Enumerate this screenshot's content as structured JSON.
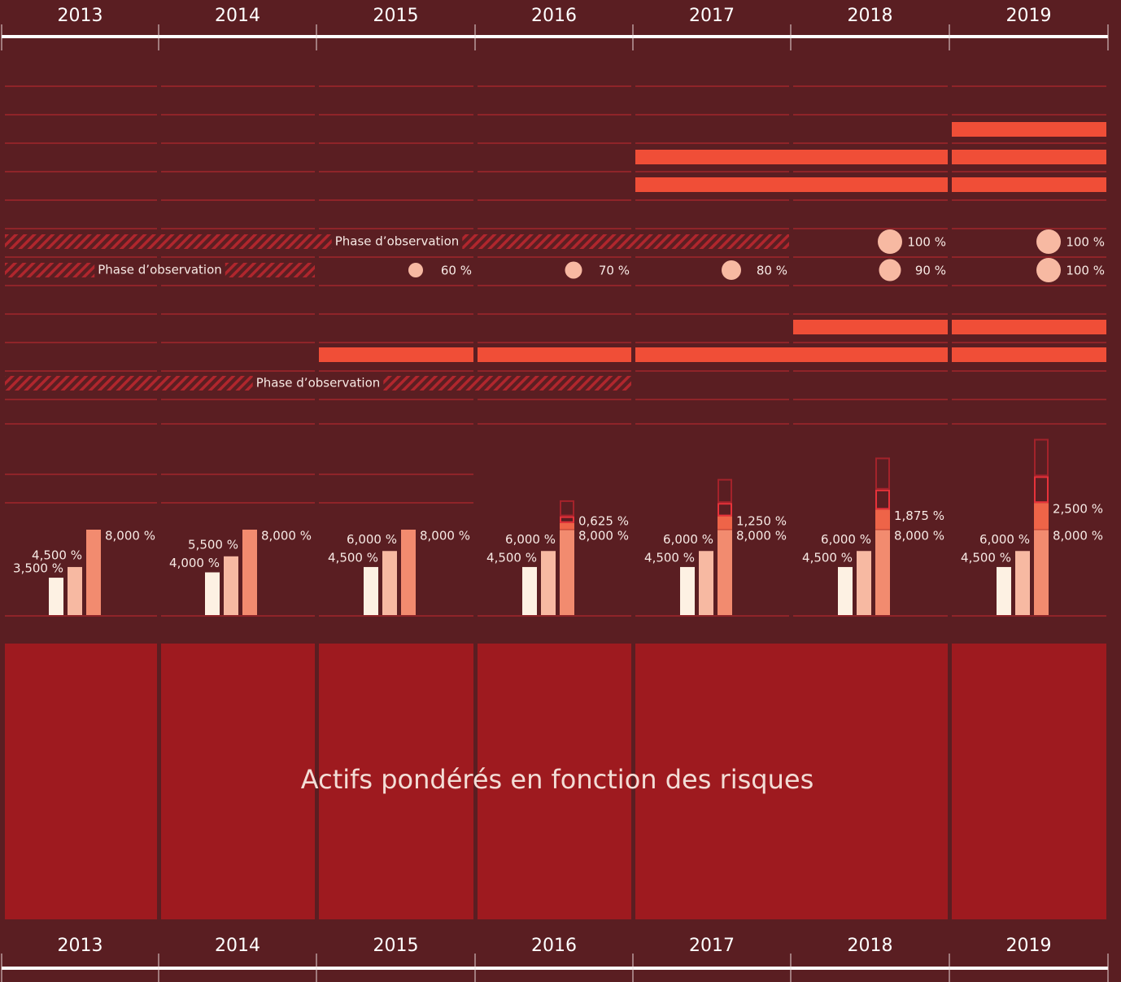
{
  "years": [
    2013,
    2014,
    2015,
    2016,
    2017,
    2018,
    2019
  ],
  "schedule": [
    {
      "spans": [
        [
          2019,
          2019
        ]
      ]
    },
    {
      "spans": [
        [
          2017,
          2018
        ],
        [
          2019,
          2019
        ]
      ]
    },
    {
      "spans": [
        [
          2017,
          2018
        ],
        [
          2019,
          2019
        ]
      ]
    },
    {
      "observation": {
        "start": 2013,
        "end": 2017,
        "label": "Phase d’observation"
      },
      "points": [
        {
          "year": 2018,
          "value": 100,
          "value_label": "100 %"
        },
        {
          "year": 2019,
          "value": 100,
          "value_label": "100 %"
        }
      ]
    },
    {
      "observation": {
        "start": 2013,
        "end": 2014,
        "label": "Phase d’observation"
      },
      "points": [
        {
          "year": 2015,
          "value": 60,
          "value_label": "60 %"
        },
        {
          "year": 2016,
          "value": 70,
          "value_label": "70 %"
        },
        {
          "year": 2017,
          "value": 80,
          "value_label": "80 %"
        },
        {
          "year": 2018,
          "value": 90,
          "value_label": "90 %"
        },
        {
          "year": 2019,
          "value": 100,
          "value_label": "100 %"
        }
      ]
    },
    {
      "spans": [
        [
          2018,
          2018
        ],
        [
          2019,
          2019
        ]
      ]
    },
    {
      "spans": [
        [
          2015,
          2015
        ],
        [
          2016,
          2016
        ],
        [
          2017,
          2018
        ],
        [
          2019,
          2019
        ]
      ]
    },
    {
      "observation": {
        "start": 2013,
        "end": 2016,
        "label": "Phase d’observation"
      }
    }
  ],
  "requirements": {
    "first": {
      "color": "#fdf1e3",
      "values": [
        3.5,
        4,
        4.5,
        4.5,
        4.5,
        4.5,
        4.5
      ],
      "value_labels": [
        "3,500 %",
        "4,000 %",
        "4,500 %",
        "4,500 %",
        "4,500 %",
        "4,500 %",
        "4,500 %"
      ]
    },
    "second": {
      "color": "#f7b9a2",
      "values": [
        4.5,
        5.5,
        6,
        6,
        6,
        6,
        6
      ],
      "value_labels": [
        "4,500 %",
        "5,500 %",
        "6,000 %",
        "6,000 %",
        "6,000 %",
        "6,000 %",
        "6,000 %"
      ]
    },
    "third": {
      "color": "#f28b6f",
      "values": [
        8,
        8,
        8,
        8,
        8,
        8,
        8
      ],
      "value_labels": [
        "8,000 %",
        "8,000 %",
        "8,000 %",
        "8,000 %",
        "8,000 %",
        "8,000 %",
        "8,000 %"
      ]
    },
    "buffer": {
      "color": "#ee6448",
      "values": [
        null,
        null,
        null,
        0.625,
        1.25,
        1.875,
        2.5
      ],
      "value_labels": [
        null,
        null,
        null,
        "0,625 %",
        "1,250 %",
        "1,875 %",
        "2,500 %"
      ]
    },
    "outline_red": {
      "color": "#e8323a",
      "values": [
        null,
        null,
        null,
        0.625,
        1.25,
        1.875,
        2.5
      ]
    },
    "outline_dark": {
      "color": "#a3232b",
      "values": [
        null,
        null,
        null,
        1.5,
        2.25,
        3,
        3.5
      ]
    }
  },
  "footer_label": "Actifs pondérés en fonction des risques"
}
